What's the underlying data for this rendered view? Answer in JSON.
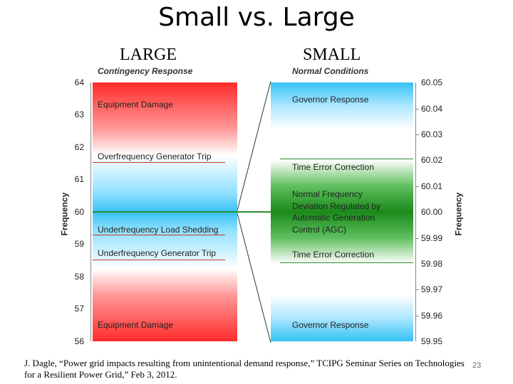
{
  "title": "Small vs. Large",
  "columns": {
    "left_header": "LARGE",
    "right_header": "SMALL"
  },
  "left_panel": {
    "subheader": "Contingency Response",
    "axis_title": "Frequency",
    "ticks": [
      "64",
      "63",
      "62",
      "61",
      "60",
      "59",
      "58",
      "57",
      "56"
    ],
    "bands": [
      {
        "label": "Equipment Damage"
      },
      {
        "label": "Overfrequency Generator Trip"
      },
      {
        "label": "Underfrequency Load Shedding"
      },
      {
        "label": "Underfrequency Generator Trip"
      },
      {
        "label": "Equipment Damage"
      }
    ]
  },
  "right_panel": {
    "subheader": "Normal Conditions",
    "axis_title": "Frequency",
    "ticks": [
      "60.05",
      "60.04",
      "60.03",
      "60.02",
      "60.01",
      "60.00",
      "59.99",
      "59.98",
      "59.97",
      "59.96",
      "59.95"
    ],
    "bands": [
      {
        "label": "Governor Response"
      },
      {
        "label": "Time Error Correction"
      },
      {
        "label": "Normal Frequency"
      },
      {
        "label": "Deviation Regulated by"
      },
      {
        "label": "Automatic Generation"
      },
      {
        "label": "Control (AGC)"
      },
      {
        "label": "Time Error Correction"
      },
      {
        "label": "Governor Response"
      }
    ]
  },
  "colors": {
    "danger": "#ff2b2b",
    "blue": "#35c2f5",
    "green": "#1a8a1a",
    "line_red": "#c0392b",
    "line_green": "#2e8b2e"
  },
  "citation": "J. Dagle, “Power grid impacts resulting from unintentional demand response,” TCIPG Seminar Series on Technologies for a Resilient Power Grid,” Feb 3, 2012.",
  "page_number": "23"
}
